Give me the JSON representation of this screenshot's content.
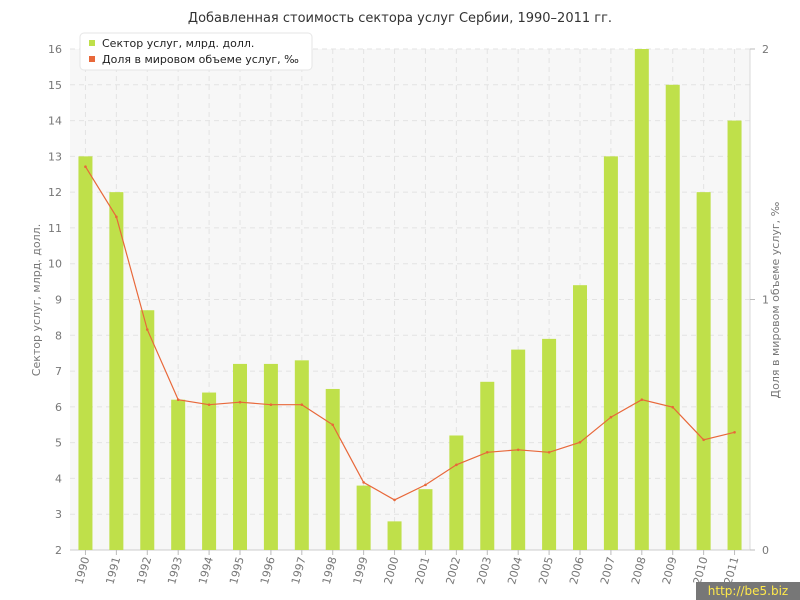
{
  "chart_data": {
    "type": "bar",
    "title": "Добавленная стоимость сектора услуг Сербии, 1990–2011 гг.",
    "ylabel_left": "Сектор услуг, млрд. долл.",
    "ylabel_right": "Доля в мировом объеме услуг, ‰",
    "categories": [
      "1990",
      "1991",
      "1992",
      "1993",
      "1994",
      "1995",
      "1996",
      "1997",
      "1998",
      "1999",
      "2000",
      "2001",
      "2002",
      "2003",
      "2004",
      "2005",
      "2006",
      "2007",
      "2008",
      "2009",
      "2010",
      "2011"
    ],
    "series": [
      {
        "name": "Сектор услуг, млрд. долл.",
        "type": "bar",
        "axis": "left",
        "color": "#bfe04a",
        "values": [
          13,
          12,
          8.7,
          6.2,
          6.4,
          7.2,
          7.2,
          7.3,
          6.5,
          3.8,
          2.8,
          3.7,
          5.2,
          6.7,
          7.6,
          7.9,
          9.4,
          13,
          16,
          15,
          12,
          14
        ]
      },
      {
        "name": "Доля в мировом объеме услуг, ‰",
        "type": "line",
        "axis": "right",
        "color": "#e8683a",
        "values": [
          1.53,
          1.33,
          0.88,
          0.6,
          0.58,
          0.59,
          0.58,
          0.58,
          0.5,
          0.27,
          0.2,
          0.26,
          0.34,
          0.39,
          0.4,
          0.39,
          0.43,
          0.53,
          0.6,
          0.57,
          0.44,
          0.47
        ]
      }
    ],
    "ylim_left": [
      2,
      16
    ],
    "yticks_left": [
      2,
      3,
      4,
      5,
      6,
      7,
      8,
      9,
      10,
      11,
      12,
      13,
      14,
      15,
      16
    ],
    "ylim_right": [
      0,
      2
    ],
    "yticks_right": [
      0,
      1,
      2
    ],
    "grid": true,
    "legend_position": "top-left"
  },
  "watermark": "http://be5.biz"
}
